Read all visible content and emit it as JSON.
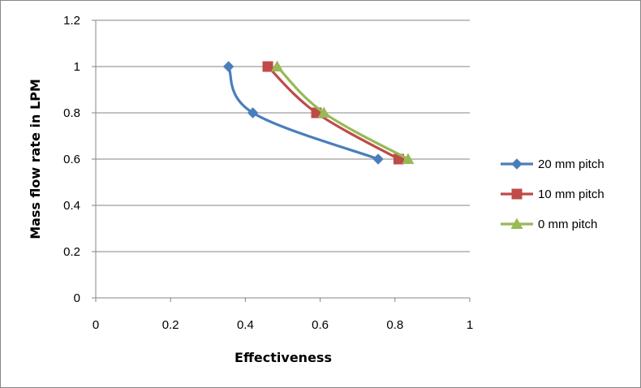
{
  "chart_data": {
    "type": "line",
    "title": "",
    "xlabel": "Effectiveness",
    "ylabel": "Mass flow rate in LPM",
    "xlim": [
      0,
      1
    ],
    "ylim": [
      0,
      1.2
    ],
    "x_ticks": [
      "0",
      "0.2",
      "0.4",
      "0.6",
      "0.8",
      "1"
    ],
    "y_ticks": [
      "0",
      "0.2",
      "0.4",
      "0.6",
      "0.8",
      "1",
      "1.2"
    ],
    "x_tick_values": [
      0,
      0.2,
      0.4,
      0.6,
      0.8,
      1
    ],
    "y_tick_values": [
      0,
      0.2,
      0.4,
      0.6,
      0.8,
      1,
      1.2
    ],
    "grid": "horizontal major gridlines",
    "legend_position": "right",
    "series": [
      {
        "name": "20 mm pitch",
        "color": "#4A7EBB",
        "marker": "diamond",
        "points": [
          {
            "x": 0.355,
            "y": 1.0
          },
          {
            "x": 0.42,
            "y": 0.8
          },
          {
            "x": 0.755,
            "y": 0.6
          }
        ]
      },
      {
        "name": "10 mm pitch",
        "color": "#BE4B48",
        "marker": "square",
        "points": [
          {
            "x": 0.46,
            "y": 1.0
          },
          {
            "x": 0.59,
            "y": 0.8
          },
          {
            "x": 0.81,
            "y": 0.6
          }
        ]
      },
      {
        "name": "0 mm pitch",
        "color": "#98B954",
        "marker": "triangle",
        "points": [
          {
            "x": 0.485,
            "y": 1.0
          },
          {
            "x": 0.61,
            "y": 0.8
          },
          {
            "x": 0.835,
            "y": 0.6
          }
        ]
      }
    ]
  }
}
